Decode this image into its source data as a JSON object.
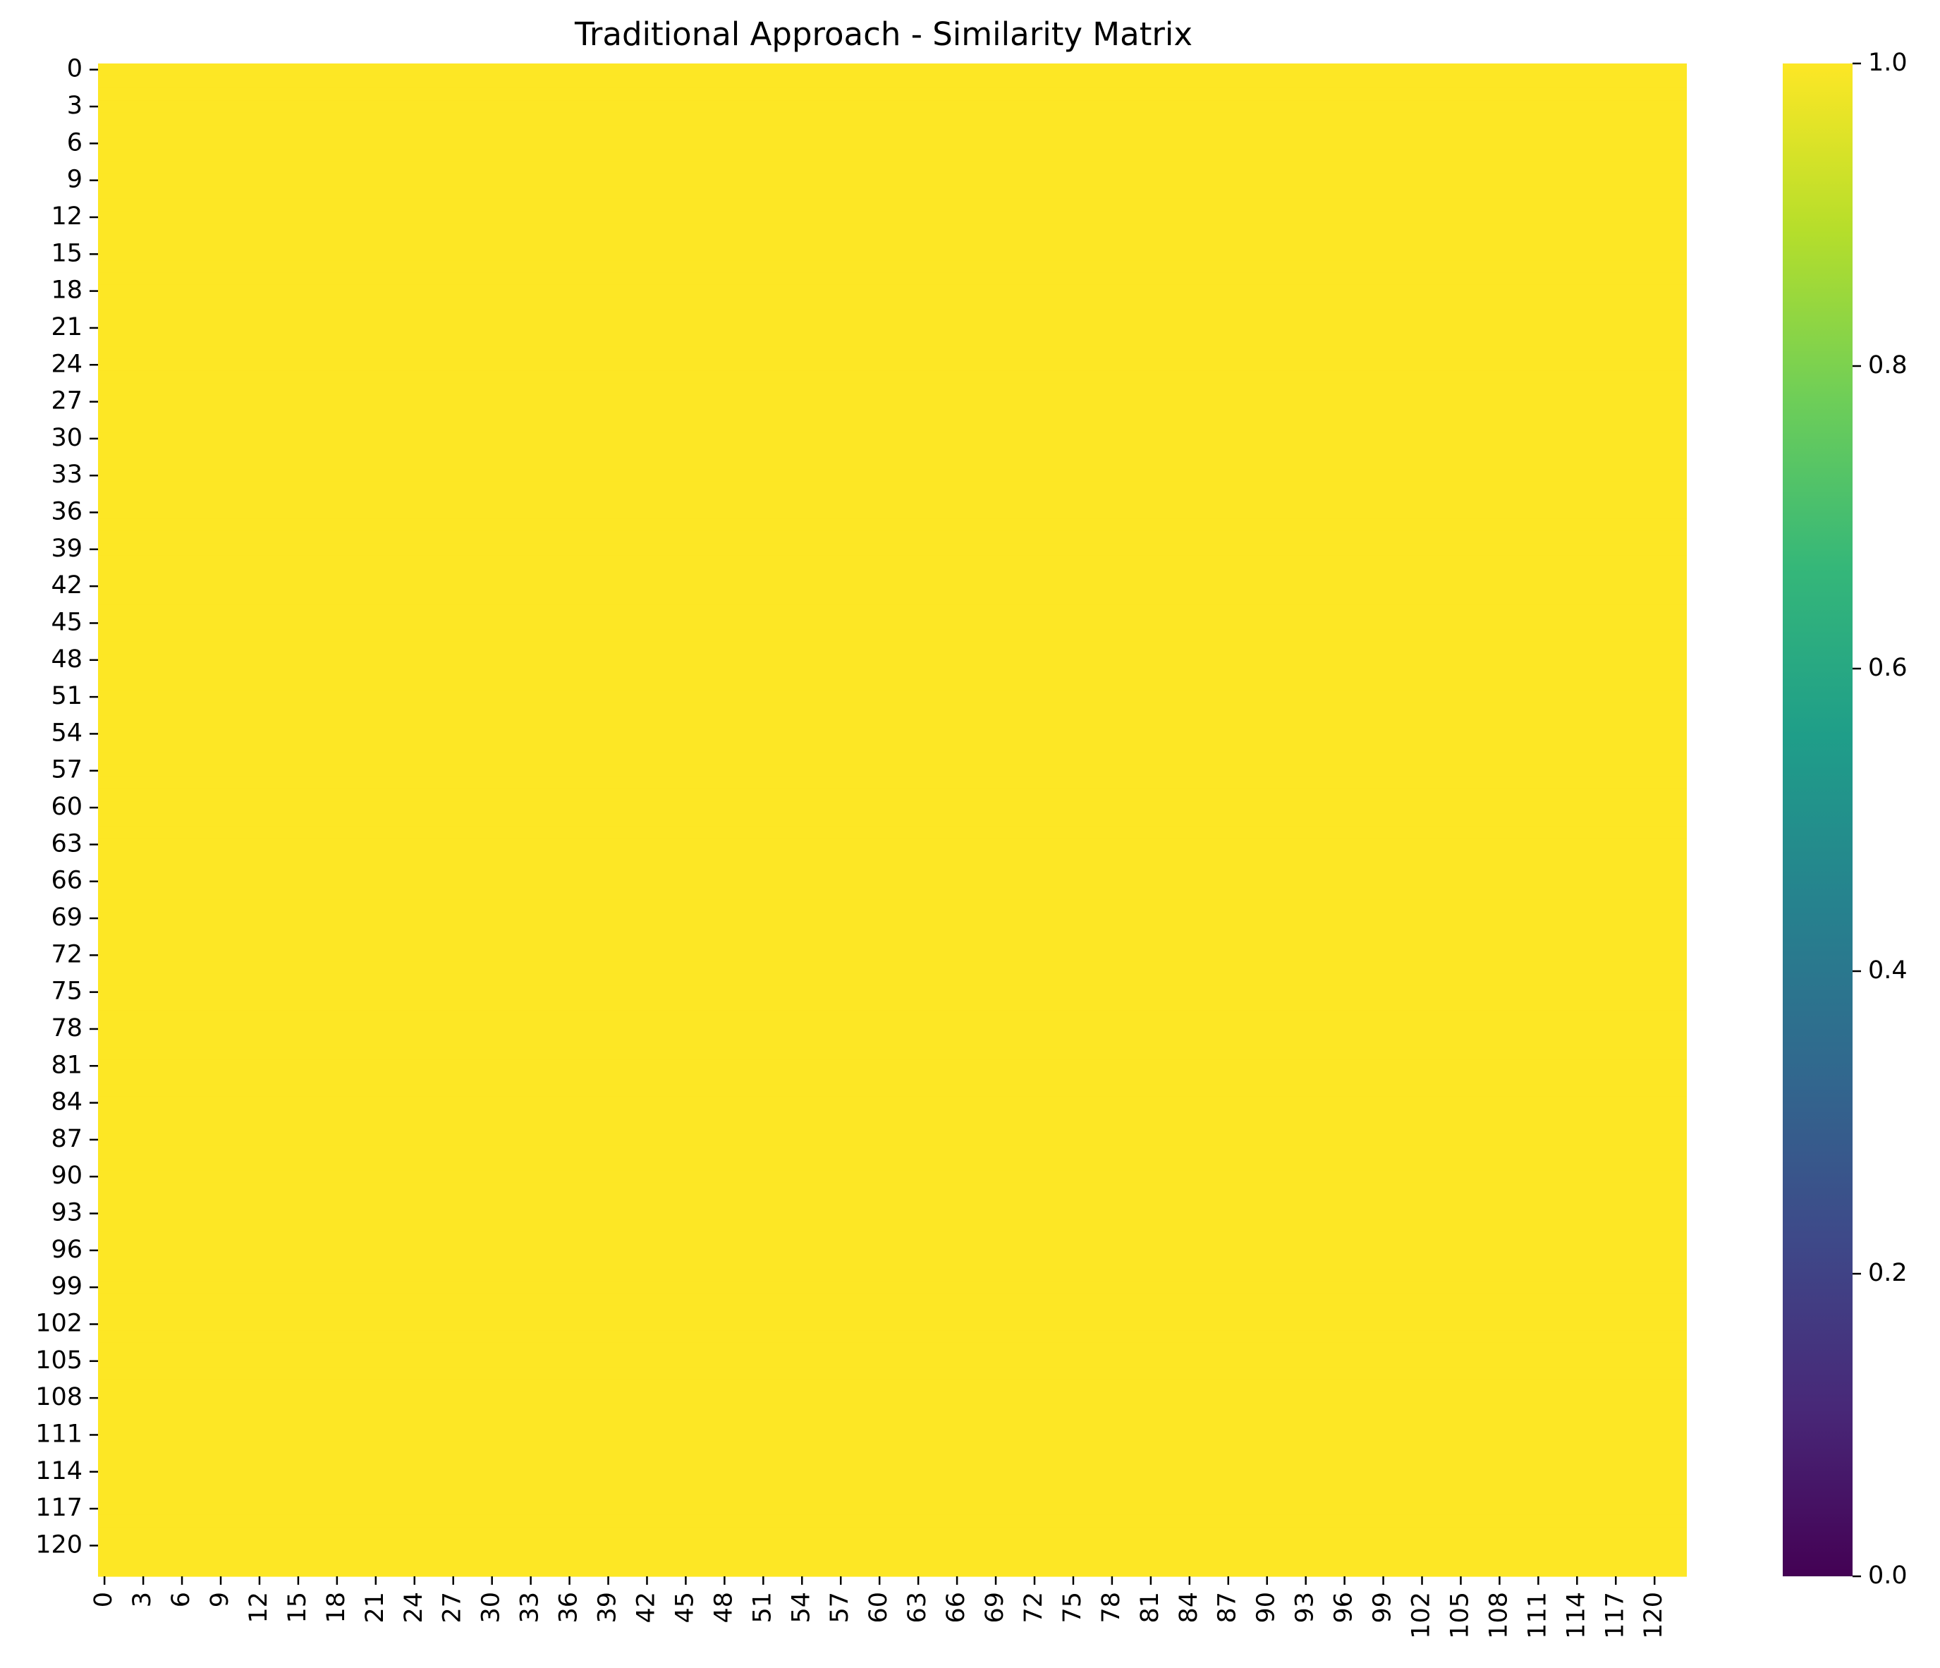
{
  "chart_data": {
    "type": "heatmap",
    "title": "Traditional Approach - Similarity Matrix",
    "xlabel": "",
    "ylabel": "",
    "n_rows": 123,
    "n_cols": 123,
    "uniform_value": 1.0,
    "x_tick_labels": [
      "0",
      "3",
      "6",
      "9",
      "12",
      "15",
      "18",
      "21",
      "24",
      "27",
      "30",
      "33",
      "36",
      "39",
      "42",
      "45",
      "48",
      "51",
      "54",
      "57",
      "60",
      "63",
      "66",
      "69",
      "72",
      "75",
      "78",
      "81",
      "84",
      "87",
      "90",
      "93",
      "96",
      "99",
      "102",
      "105",
      "108",
      "111",
      "114",
      "117",
      "120"
    ],
    "y_tick_labels": [
      "0",
      "3",
      "6",
      "9",
      "12",
      "15",
      "18",
      "21",
      "24",
      "27",
      "30",
      "33",
      "36",
      "39",
      "42",
      "45",
      "48",
      "51",
      "54",
      "57",
      "60",
      "63",
      "66",
      "69",
      "72",
      "75",
      "78",
      "81",
      "84",
      "87",
      "90",
      "93",
      "96",
      "99",
      "102",
      "105",
      "108",
      "111",
      "114",
      "117",
      "120"
    ],
    "colorbar": {
      "colormap": "viridis",
      "vmin": 0.0,
      "vmax": 1.0,
      "tick_labels": [
        "0.0",
        "0.2",
        "0.4",
        "0.6",
        "0.8",
        "1.0"
      ]
    },
    "grid": false,
    "legend": "none"
  },
  "colors": {
    "heat_cell": "#fde725",
    "viridis_stops": [
      "#440154",
      "#482878",
      "#3e4989",
      "#31688e",
      "#26828e",
      "#1f9e89",
      "#35b779",
      "#6ece58",
      "#b5de2b",
      "#fde725"
    ]
  }
}
